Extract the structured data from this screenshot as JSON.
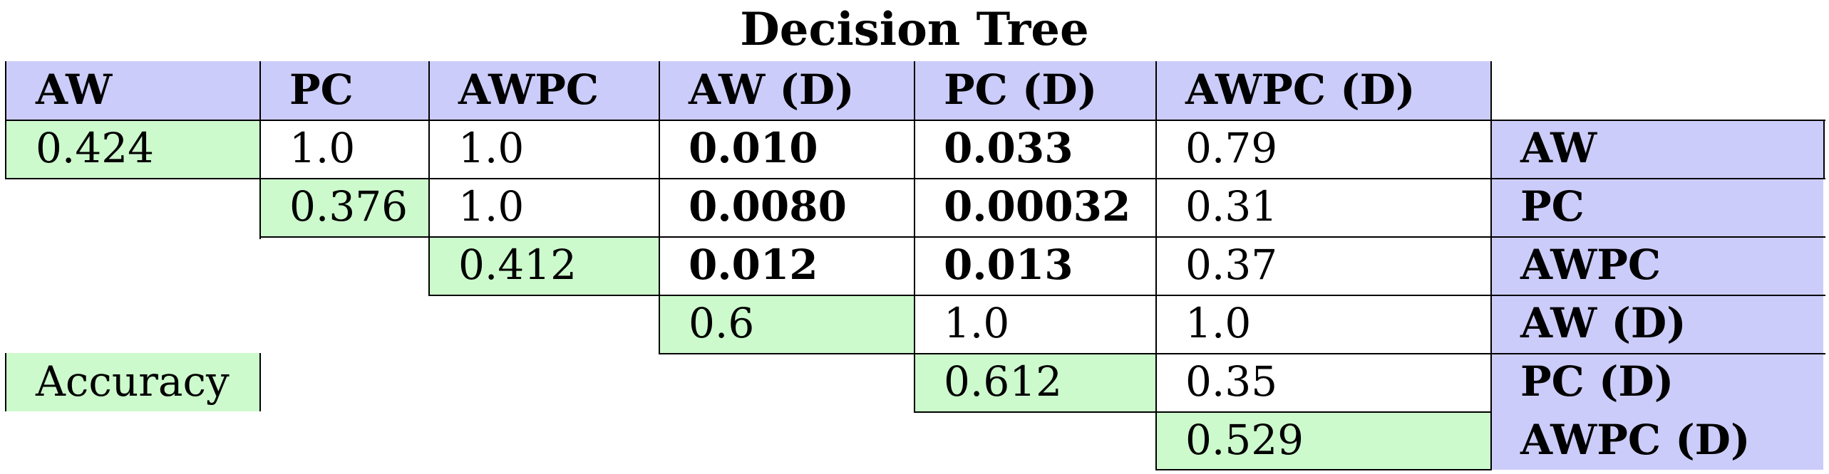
{
  "title": "Decision Tree",
  "columns": [
    "AW",
    "PC",
    "AWPC",
    "AW (D)",
    "PC (D)",
    "AWPC (D)"
  ],
  "rows": [
    {
      "label": "AW",
      "accuracy": "0.424",
      "values": [
        "1.0",
        "1.0",
        "0.010",
        "0.033",
        "0.79"
      ]
    },
    {
      "label": "PC",
      "accuracy": "0.376",
      "values": [
        "1.0",
        "0.0080",
        "0.00032",
        "0.31"
      ]
    },
    {
      "label": "AWPC",
      "accuracy": "0.412",
      "values": [
        "0.012",
        "0.013",
        "0.37"
      ]
    },
    {
      "label": "AW (D)",
      "accuracy": "0.6",
      "values": [
        "1.0",
        "1.0"
      ]
    },
    {
      "label": "PC (D)",
      "accuracy": "0.612",
      "values": [
        "0.35"
      ]
    },
    {
      "label": "AWPC (D)",
      "accuracy": "0.529",
      "values": []
    }
  ],
  "legend": {
    "label": "Accuracy"
  },
  "colors": {
    "header": "#ccccfa",
    "accuracy": "#ccfacc"
  }
}
